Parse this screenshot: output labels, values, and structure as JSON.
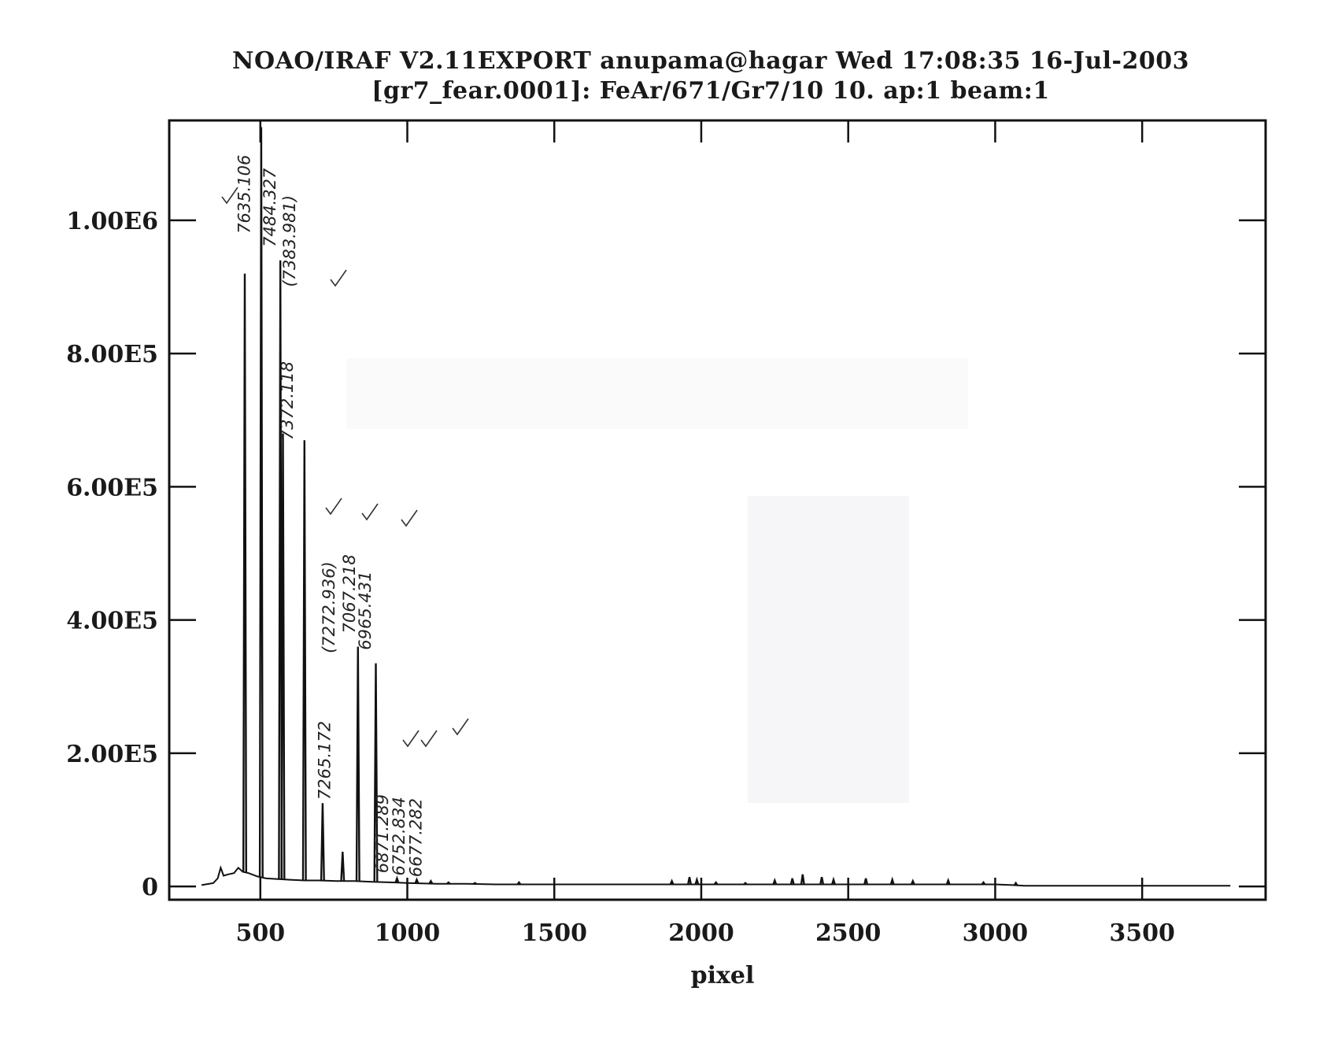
{
  "header": {
    "title_line_1": "NOAO/IRAF V2.11EXPORT anupama@hagar Wed 17:08:35 16-Jul-2003",
    "title_line_2": "[gr7_fear.0001]: FeAr/671/Gr7/10 10. ap:1 beam:1"
  },
  "chart_data": {
    "type": "line",
    "title": "NOAO/IRAF V2.11EXPORT anupama@hagar Wed 17:08:35 16-Jul-2003",
    "subtitle": "[gr7_fear.0001]: FeAr/671/Gr7/10 10. ap:1 beam:1",
    "xlabel": "pixel",
    "ylabel": "",
    "xlim": [
      190,
      3920
    ],
    "ylim": [
      -20000,
      1150000
    ],
    "x_ticks": [
      500,
      1000,
      1500,
      2000,
      2500,
      3000,
      3500
    ],
    "x_tick_labels": [
      "500",
      "1000",
      "1500",
      "2000",
      "2500",
      "3000",
      "3500"
    ],
    "y_ticks": [
      0,
      200000,
      400000,
      600000,
      800000,
      1000000
    ],
    "y_tick_labels": [
      "0",
      "2.00E5",
      "4.00E5",
      "6.00E5",
      "8.00E5",
      "1.00E6"
    ],
    "grid": false,
    "line_color": "#111111",
    "series": [
      {
        "baseline": [
          [
            300,
            2000
          ],
          [
            340,
            5000
          ],
          [
            355,
            12000
          ],
          [
            365,
            28000
          ],
          [
            375,
            16000
          ],
          [
            390,
            18000
          ],
          [
            410,
            20000
          ],
          [
            425,
            28000
          ],
          [
            440,
            22000
          ],
          [
            460,
            20000
          ],
          [
            490,
            15000
          ],
          [
            520,
            12000
          ],
          [
            560,
            11000
          ],
          [
            600,
            10000
          ],
          [
            650,
            9000
          ],
          [
            700,
            9000
          ],
          [
            760,
            8000
          ],
          [
            820,
            8000
          ],
          [
            880,
            7000
          ],
          [
            950,
            6000
          ],
          [
            1000,
            5000
          ],
          [
            1100,
            4000
          ],
          [
            1200,
            4000
          ],
          [
            1300,
            3000
          ],
          [
            1400,
            3000
          ],
          [
            1500,
            3000
          ],
          [
            1600,
            3000
          ],
          [
            1700,
            3000
          ],
          [
            1800,
            3000
          ],
          [
            1900,
            3000
          ],
          [
            2000,
            3000
          ],
          [
            2100,
            3000
          ],
          [
            2200,
            3000
          ],
          [
            2300,
            3000
          ],
          [
            2400,
            3000
          ],
          [
            2500,
            3000
          ],
          [
            2600,
            3000
          ],
          [
            2700,
            3000
          ],
          [
            2800,
            3000
          ],
          [
            2900,
            3000
          ],
          [
            3000,
            3000
          ],
          [
            3060,
            2000
          ],
          [
            3100,
            1000
          ],
          [
            3800,
            1000
          ]
        ],
        "peaks": [
          {
            "x": 447,
            "y": 920000
          },
          {
            "x": 503,
            "y": 1140000
          },
          {
            "x": 568,
            "y": 940000
          },
          {
            "x": 577,
            "y": 680000
          },
          {
            "x": 650,
            "y": 670000
          },
          {
            "x": 712,
            "y": 125000
          },
          {
            "x": 780,
            "y": 52000
          },
          {
            "x": 832,
            "y": 360000
          },
          {
            "x": 893,
            "y": 335000
          },
          {
            "x": 965,
            "y": 12000
          },
          {
            "x": 1032,
            "y": 10000
          },
          {
            "x": 1080,
            "y": 8000
          },
          {
            "x": 1140,
            "y": 6000
          },
          {
            "x": 1230,
            "y": 5000
          },
          {
            "x": 1380,
            "y": 6000
          },
          {
            "x": 1900,
            "y": 8000
          },
          {
            "x": 1960,
            "y": 14000
          },
          {
            "x": 1985,
            "y": 10000
          },
          {
            "x": 2050,
            "y": 6000
          },
          {
            "x": 2150,
            "y": 5000
          },
          {
            "x": 2250,
            "y": 9000
          },
          {
            "x": 2310,
            "y": 12000
          },
          {
            "x": 2345,
            "y": 18000
          },
          {
            "x": 2410,
            "y": 14000
          },
          {
            "x": 2450,
            "y": 10000
          },
          {
            "x": 2560,
            "y": 12000
          },
          {
            "x": 2650,
            "y": 10000
          },
          {
            "x": 2720,
            "y": 8000
          },
          {
            "x": 2840,
            "y": 9000
          },
          {
            "x": 2960,
            "y": 6000
          },
          {
            "x": 3070,
            "y": 5000
          }
        ]
      }
    ],
    "annotations": [
      {
        "text": "7635.106",
        "x": 464,
        "y": 980000
      },
      {
        "text": "7484.327",
        "x": 552,
        "y": 960000
      },
      {
        "text": "(7383.981)",
        "x": 618,
        "y": 900000
      },
      {
        "text": "7372.118",
        "x": 610,
        "y": 670000
      },
      {
        "text": "(7272.936)",
        "x": 752,
        "y": 350000
      },
      {
        "text": "7265.172",
        "x": 738,
        "y": 130000
      },
      {
        "text": "7067.218",
        "x": 822,
        "y": 380000
      },
      {
        "text": "6965.431",
        "x": 876,
        "y": 355000
      },
      {
        "text": "6871.289",
        "x": 935,
        "y": 20000
      },
      {
        "text": "6752.834",
        "x": 991,
        "y": 16000
      },
      {
        "text": "6677.282",
        "x": 1048,
        "y": 14000
      }
    ]
  }
}
